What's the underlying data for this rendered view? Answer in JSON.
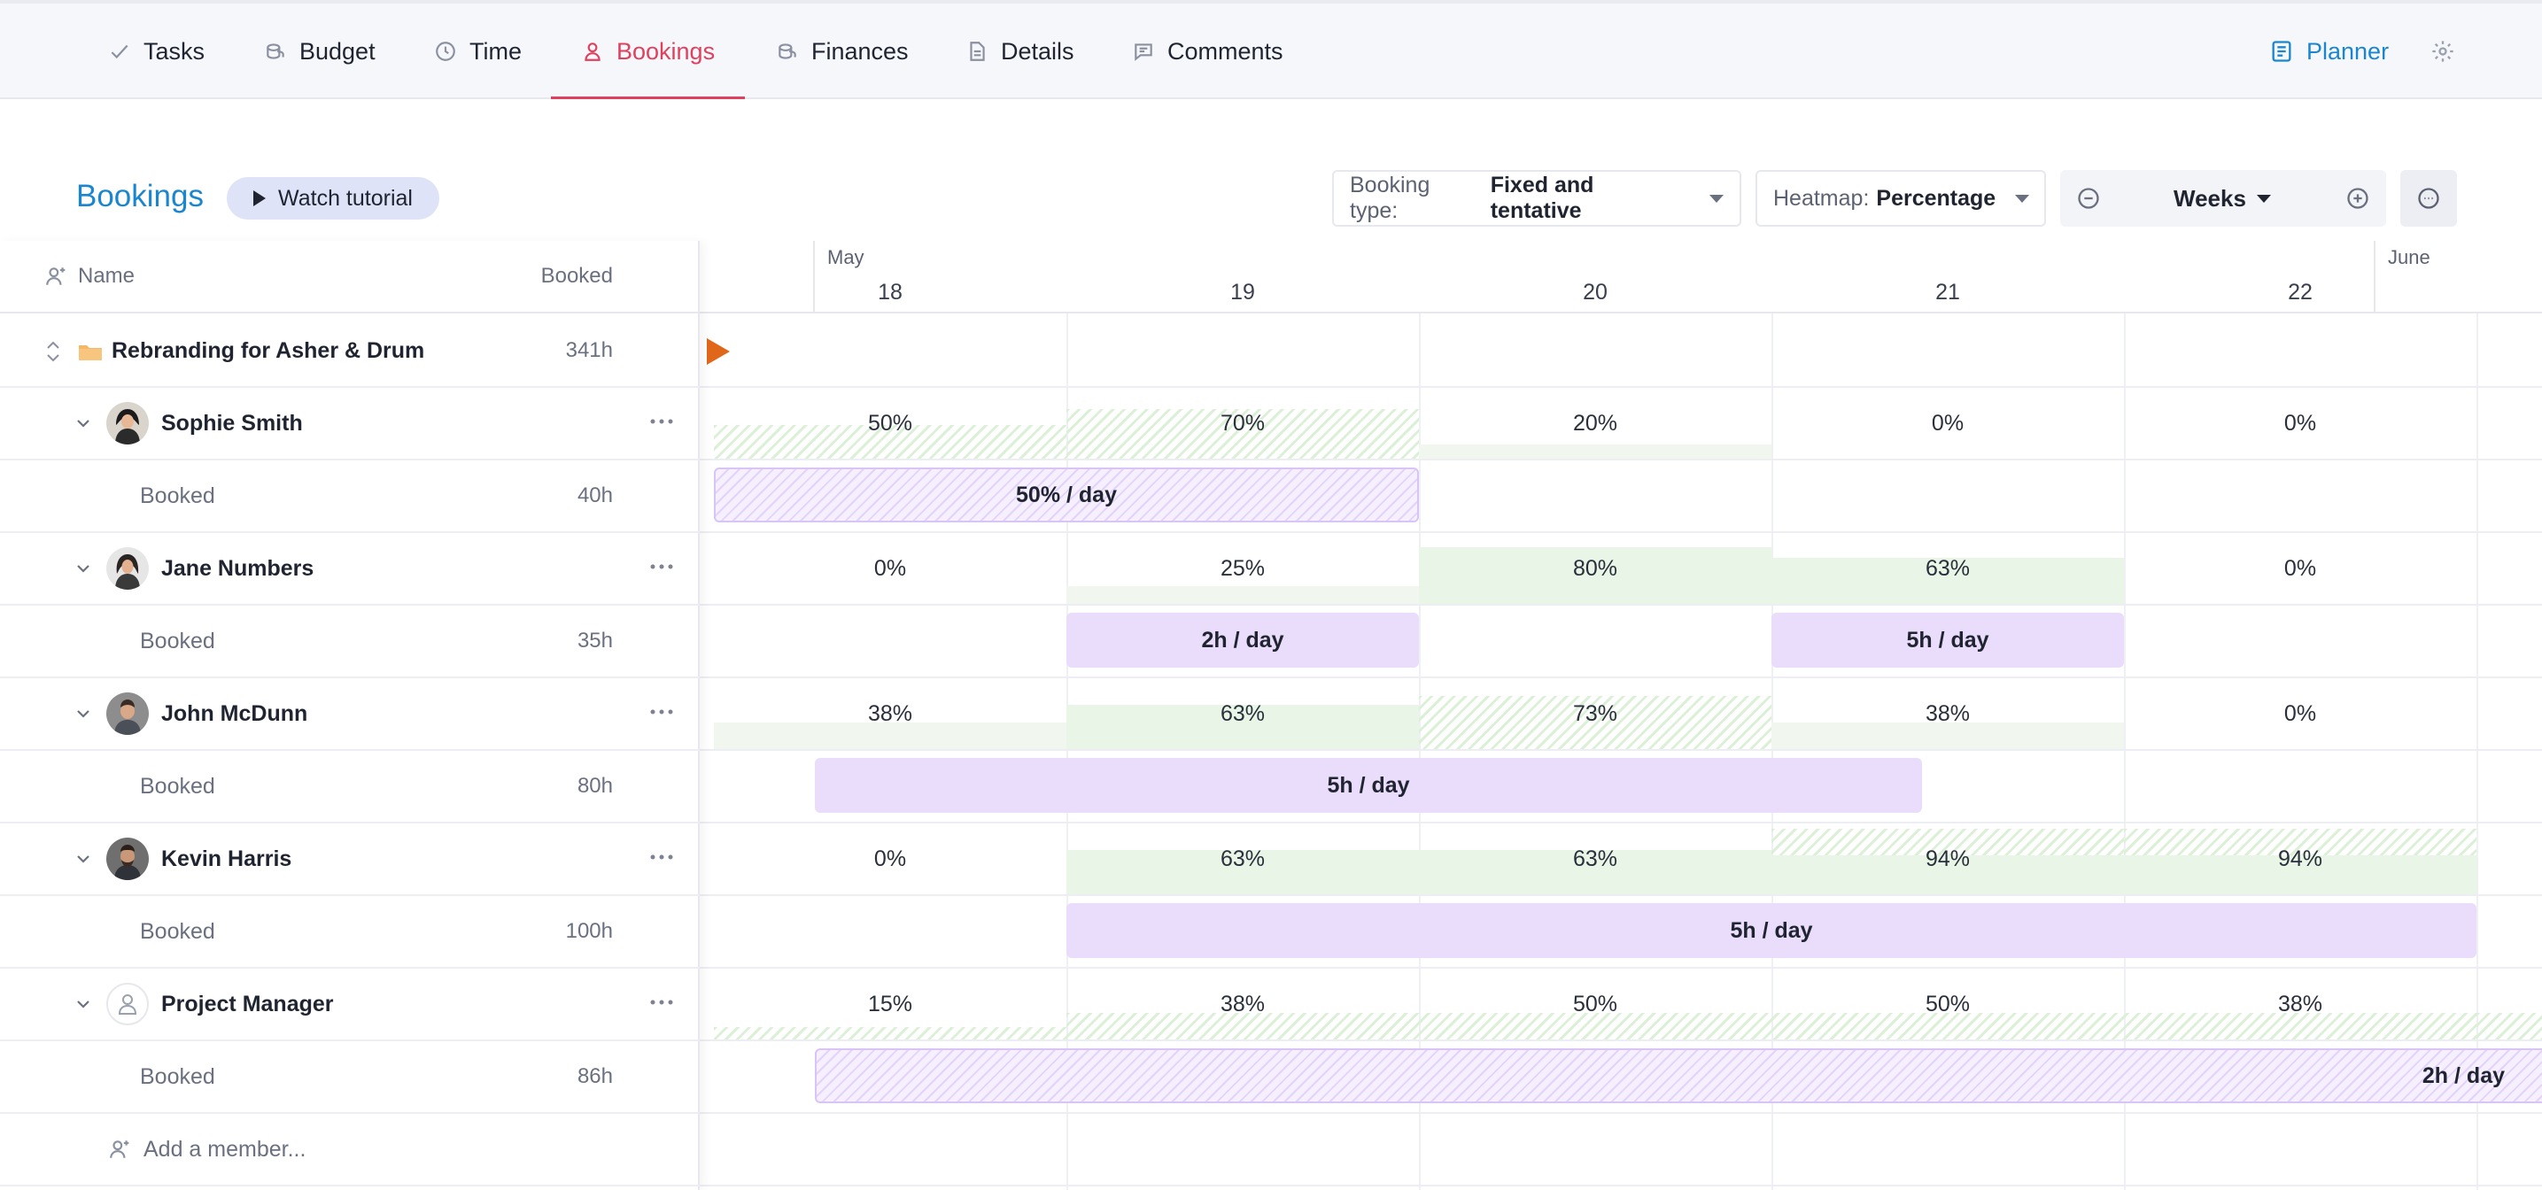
{
  "nav": {
    "tabs": [
      {
        "label": "Tasks",
        "icon": "check-icon"
      },
      {
        "label": "Budget",
        "icon": "coins-icon"
      },
      {
        "label": "Time",
        "icon": "clock-icon"
      },
      {
        "label": "Bookings",
        "icon": "person-icon",
        "active": true
      },
      {
        "label": "Finances",
        "icon": "coins-icon"
      },
      {
        "label": "Details",
        "icon": "document-icon"
      },
      {
        "label": "Comments",
        "icon": "comment-icon"
      }
    ],
    "planner_label": "Planner"
  },
  "toolbar": {
    "title": "Bookings",
    "watch_label": "Watch tutorial",
    "booking_type_label": "Booking type:",
    "booking_type_value": "Fixed and tentative",
    "heatmap_label": "Heatmap:",
    "heatmap_value": "Percentage",
    "zoom_value": "Weeks"
  },
  "columns": {
    "name": "Name",
    "booked": "Booked"
  },
  "timeline": {
    "months": [
      "May",
      "June"
    ],
    "days": [
      "18",
      "19",
      "20",
      "21",
      "22"
    ]
  },
  "project": {
    "name": "Rebranding for Asher & Drum",
    "booked": "341h"
  },
  "members": [
    {
      "name": "Sophie Smith",
      "booked_label": "Booked",
      "booked": "40h",
      "percentages": [
        "50%",
        "70%",
        "20%",
        "0%",
        "0%"
      ],
      "bars": [
        {
          "label": "50% / day",
          "tentative": true
        }
      ]
    },
    {
      "name": "Jane Numbers",
      "booked_label": "Booked",
      "booked": "35h",
      "percentages": [
        "0%",
        "25%",
        "80%",
        "63%",
        "0%"
      ],
      "bars": [
        {
          "label": "2h / day"
        },
        {
          "label": "5h / day"
        }
      ]
    },
    {
      "name": "John McDunn",
      "booked_label": "Booked",
      "booked": "80h",
      "percentages": [
        "38%",
        "63%",
        "73%",
        "38%",
        "0%"
      ],
      "bars": [
        {
          "label": "5h / day"
        }
      ]
    },
    {
      "name": "Kevin Harris",
      "booked_label": "Booked",
      "booked": "100h",
      "percentages": [
        "0%",
        "63%",
        "63%",
        "94%",
        "94%"
      ],
      "bars": [
        {
          "label": "5h / day"
        }
      ]
    },
    {
      "name": "Project Manager",
      "booked_label": "Booked",
      "booked": "86h",
      "percentages": [
        "15%",
        "38%",
        "50%",
        "50%",
        "38%"
      ],
      "bars": [
        {
          "label": "2h / day",
          "tentative": true
        }
      ]
    }
  ],
  "add_member_label": "Add a member...",
  "colors": {
    "accent": "#e0405e",
    "link": "#1a86d0",
    "heat": "#e9f5e6",
    "booking": "#eadcfb"
  }
}
